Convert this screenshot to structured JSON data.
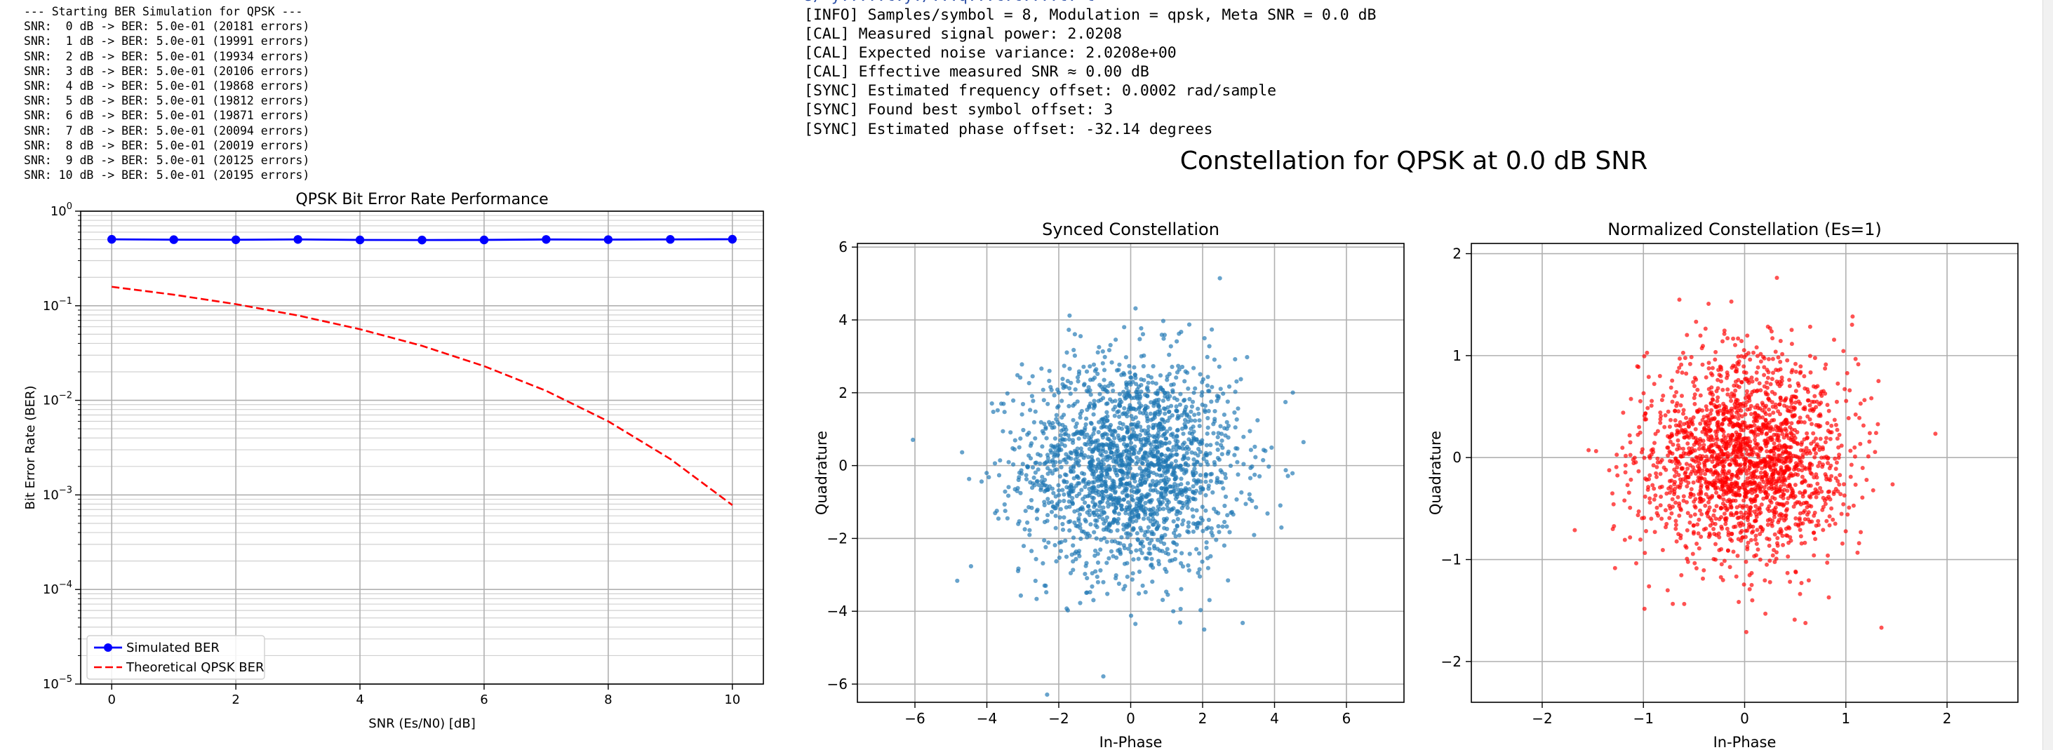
{
  "console_left": [
    "--- Starting BER Simulation for QPSK ---",
    "SNR:  0 dB -> BER: 5.0e-01 (20181 errors)",
    "SNR:  1 dB -> BER: 5.0e-01 (19991 errors)",
    "SNR:  2 dB -> BER: 5.0e-01 (19934 errors)",
    "SNR:  3 dB -> BER: 5.0e-01 (20106 errors)",
    "SNR:  4 dB -> BER: 5.0e-01 (19868 errors)",
    "SNR:  5 dB -> BER: 5.0e-01 (19812 errors)",
    "SNR:  6 dB -> BER: 5.0e-01 (19871 errors)",
    "SNR:  7 dB -> BER: 5.0e-01 (20094 errors)",
    "SNR:  8 dB -> BER: 5.0e-01 (20019 errors)",
    "SNR:  9 dB -> BER: 5.0e-01 (20125 errors)",
    "SNR: 10 dB -> BER: 5.0e-01 (20195 errors)"
  ],
  "console_right": [
    "[INFO] Samples/symbol = 8, Modulation = qpsk, Meta SNR = 0.0 dB",
    "[CAL] Measured signal power: 2.0208",
    "[CAL] Expected noise variance: 2.0208e+00",
    "[CAL] Effective measured SNR ≈ 0.00 dB",
    "[SYNC] Estimated frequency offset: 0.0002 rad/sample",
    "[SYNC] Found best symbol offset: 3",
    "[SYNC] Estimated phase offset: -32.14 degrees"
  ],
  "figure_title": "Constellation for QPSK at 0.0 dB SNR",
  "chart_data": [
    {
      "type": "line",
      "title": "QPSK Bit Error Rate Performance",
      "xlabel": "SNR (Es/N0) [dB]",
      "ylabel": "Bit Error Rate (BER)",
      "yscale": "log",
      "ylim": [
        1e-05,
        1
      ],
      "xlim": [
        -0.5,
        10.5
      ],
      "xticks": [
        0,
        2,
        4,
        6,
        8,
        10
      ],
      "yticks": [
        1e-05,
        0.0001,
        0.001,
        0.01,
        0.1,
        1
      ],
      "ytick_labels": [
        [
          "10",
          "−5"
        ],
        [
          "10",
          "−4"
        ],
        [
          "10",
          "−3"
        ],
        [
          "10",
          "−2"
        ],
        [
          "10",
          "−1"
        ],
        [
          "10",
          "0"
        ]
      ],
      "grid": true,
      "legend_position": "lower-left",
      "x": [
        0,
        1,
        2,
        3,
        4,
        5,
        6,
        7,
        8,
        9,
        10
      ],
      "series": [
        {
          "name": "Simulated BER",
          "color": "#0000ff",
          "style": "solid-marker",
          "values": [
            0.504,
            0.4998,
            0.4984,
            0.5027,
            0.4967,
            0.4953,
            0.4968,
            0.5024,
            0.5005,
            0.5031,
            0.5049
          ]
        },
        {
          "name": "Theoretical QPSK BER",
          "color": "#ff0000",
          "style": "dashed",
          "values": [
            0.1587,
            0.1309,
            0.104,
            0.0789,
            0.0565,
            0.0377,
            0.023,
            0.0126,
            0.006,
            0.0024,
            0.00078
          ]
        }
      ]
    },
    {
      "type": "scatter",
      "title": "Synced Constellation",
      "xlabel": "In-Phase",
      "ylabel": "Quadrature",
      "xlim": [
        -7.6,
        7.6
      ],
      "ylim": [
        -6.5,
        6.1
      ],
      "xticks": [
        -6,
        -4,
        -2,
        0,
        2,
        4,
        6
      ],
      "yticks": [
        -6,
        -4,
        -2,
        0,
        2,
        4,
        6
      ],
      "grid": true,
      "color": "#1f77b4",
      "point_count": 2000,
      "distribution": "gaussian cloud centered at (0, 0), std ≈ 1.5 per axis, extent ≈ ±6"
    },
    {
      "type": "scatter",
      "title": "Normalized Constellation (Es=1)",
      "xlabel": "In-Phase",
      "ylabel": "Quadrature",
      "xlim": [
        -2.7,
        2.7
      ],
      "ylim": [
        -2.4,
        2.1
      ],
      "xticks": [
        -2,
        -1,
        0,
        1,
        2
      ],
      "yticks": [
        -2,
        -1,
        0,
        1,
        2
      ],
      "grid": true,
      "color": "#ff0000",
      "point_count": 2000,
      "distribution": "gaussian cloud centered at (0, 0), std ≈ 0.5 per axis, extent ≈ ±2"
    }
  ]
}
